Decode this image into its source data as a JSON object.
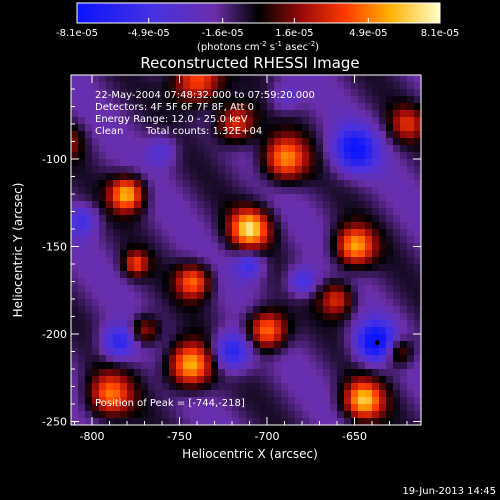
{
  "colorbar": {
    "tick_labels": [
      "-8.1e-05",
      "-4.9e-05",
      "-1.6e-05",
      "1.6e-05",
      "4.9e-05",
      "8.1e-05"
    ],
    "tick_values": [
      -8.1e-05,
      -4.9e-05,
      -1.6e-05,
      1.6e-05,
      4.9e-05,
      8.1e-05
    ],
    "range": [
      -8.1e-05,
      8.1e-05
    ],
    "unit_main": "(photons cm",
    "unit_sup1": "-2",
    "unit_mid": " s",
    "unit_sup2": "-1",
    "unit_end": " asec",
    "unit_sup3": "-2",
    "unit_close": ")"
  },
  "chart_data": {
    "type": "heatmap",
    "title": "Reconstructed RHESSI Image",
    "xlabel": "Heliocentric X (arcsec)",
    "ylabel": "Heliocentric Y (arcsec)",
    "xlim": [
      -812,
      -612
    ],
    "ylim": [
      -252,
      -52
    ],
    "xticks": [
      -800,
      -750,
      -700,
      -650
    ],
    "yticks": [
      -250,
      -200,
      -150,
      -100
    ],
    "xtick_labels": [
      "-800",
      "-750",
      "-700",
      "-650"
    ],
    "ytick_labels": [
      "-250",
      "-200",
      "-150",
      "-100"
    ],
    "colormap": "blue-purple-black-red-yellow-white",
    "annotations": {
      "time_range": "22-May-2004 07:48:32.000 to 07:59:20.000",
      "detectors": "Detectors: 4F 5F 6F 7F 8F, Att 0",
      "energy": "Energy Range: 12.0 - 25.0 keV",
      "clean_label": "Clean",
      "total_counts": "Total counts: 1.32E+04",
      "peak": "Position of Peak = [-744,-218]"
    },
    "peak": [
      -744,
      -218
    ],
    "marker": [
      -637,
      -205
    ],
    "blobs": [
      {
        "x": -780,
        "y": -120,
        "sigma": 7,
        "amp": 0.95
      },
      {
        "x": -740,
        "y": -55,
        "sigma": 10,
        "amp": 0.8
      },
      {
        "x": -718,
        "y": -80,
        "sigma": 8,
        "amp": 0.7
      },
      {
        "x": -710,
        "y": -140,
        "sigma": 8,
        "amp": 1.0
      },
      {
        "x": -690,
        "y": -100,
        "sigma": 9,
        "amp": 0.85
      },
      {
        "x": -650,
        "y": -150,
        "sigma": 8,
        "amp": 0.9
      },
      {
        "x": -660,
        "y": -180,
        "sigma": 7,
        "amp": 0.6
      },
      {
        "x": -742,
        "y": -170,
        "sigma": 7,
        "amp": 0.75
      },
      {
        "x": -744,
        "y": -218,
        "sigma": 9,
        "amp": 1.0
      },
      {
        "x": -700,
        "y": -198,
        "sigma": 8,
        "amp": 0.9
      },
      {
        "x": -645,
        "y": -238,
        "sigma": 8,
        "amp": 0.95
      },
      {
        "x": -790,
        "y": -235,
        "sigma": 9,
        "amp": 0.75
      },
      {
        "x": -770,
        "y": -198,
        "sigma": 6,
        "amp": 0.55
      },
      {
        "x": -625,
        "y": -210,
        "sigma": 6,
        "amp": 0.55
      },
      {
        "x": -620,
        "y": -80,
        "sigma": 7,
        "amp": 0.5
      },
      {
        "x": -775,
        "y": -160,
        "sigma": 5,
        "amp": 0.6
      },
      {
        "x": -690,
        "y": -65,
        "sigma": 6,
        "amp": -0.3
      },
      {
        "x": -650,
        "y": -95,
        "sigma": 9,
        "amp": -0.75
      },
      {
        "x": -710,
        "y": -160,
        "sigma": 6,
        "amp": -0.5
      },
      {
        "x": -720,
        "y": -210,
        "sigma": 8,
        "amp": -0.7
      },
      {
        "x": -785,
        "y": -205,
        "sigma": 7,
        "amp": -0.6
      },
      {
        "x": -638,
        "y": -205,
        "sigma": 8,
        "amp": -0.9
      },
      {
        "x": -680,
        "y": -170,
        "sigma": 6,
        "amp": -0.5
      },
      {
        "x": -805,
        "y": -135,
        "sigma": 6,
        "amp": -0.4
      },
      {
        "x": -760,
        "y": -95,
        "sigma": 6,
        "amp": -0.35
      },
      {
        "x": -815,
        "y": -90,
        "sigma": 7,
        "amp": 0.4
      }
    ]
  },
  "footer": {
    "timestamp": "19-Jun-2013 14:45"
  }
}
